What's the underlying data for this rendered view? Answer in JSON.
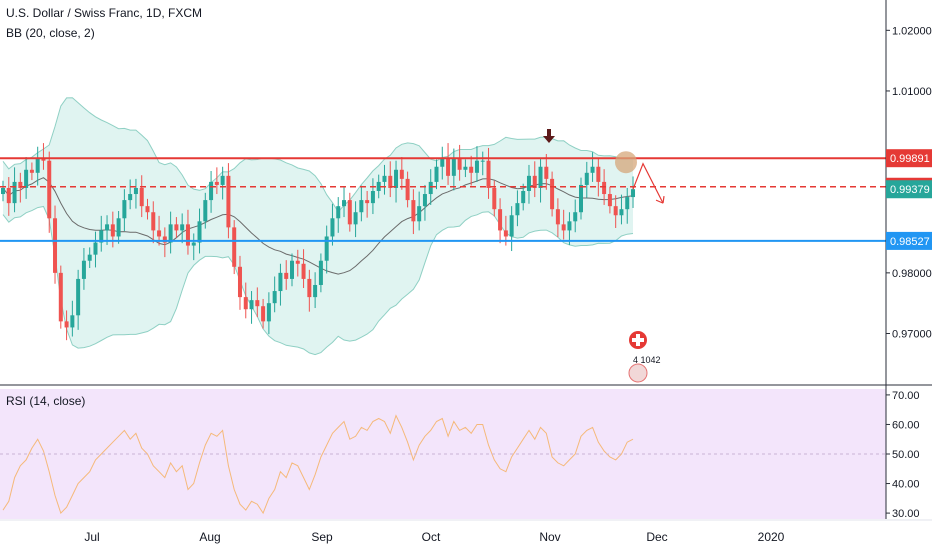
{
  "header": {
    "symbol": "U.S. Dollar / Swiss Franc, 1D, FXCM",
    "indicator": "BB (20, close, 2)",
    "rsi_label": "RSI (14, close)"
  },
  "colors": {
    "up": "#26a69a",
    "down": "#ef5350",
    "bb_fill": "#e0f4f1",
    "bb_line": "#8fd0c4",
    "basis": "#6b6b6b",
    "resistance": "#e53935",
    "support": "#2196f3",
    "current": "#26a69a",
    "rsi_bg": "#f3e5fb",
    "rsi_line": "#f5b97a",
    "annotation_arrow": "#5d1a1a",
    "circle": "#d6a77a"
  },
  "chart_data": [
    {
      "type": "candlestick",
      "title": "U.S. Dollar / Swiss Franc, 1D, FXCM",
      "x_tick_labels": [
        "Jul",
        "Aug",
        "Sep",
        "Oct",
        "Nov",
        "Dec",
        "2020"
      ],
      "y_tick_labels": [
        "1.02000",
        "1.01000",
        "0.98000",
        "0.97000"
      ],
      "ylim": [
        0.962,
        1.025
      ],
      "price_labels": [
        {
          "value": 0.99891,
          "label": "0.99891",
          "role": "resistance"
        },
        {
          "value": 0.9942,
          "label": "0.99420",
          "role": "resistance-dashed"
        },
        {
          "value": 0.99379,
          "label": "0.99379",
          "role": "current"
        },
        {
          "value": 0.98527,
          "label": "0.98527",
          "role": "support"
        }
      ],
      "overlay": "BB (20, close, 2)",
      "closes": [
        0.994,
        0.9915,
        0.995,
        0.994,
        0.997,
        0.9965,
        0.999,
        0.9985,
        0.989,
        0.98,
        0.972,
        0.971,
        0.973,
        0.979,
        0.982,
        0.983,
        0.985,
        0.987,
        0.988,
        0.986,
        0.989,
        0.992,
        0.993,
        0.994,
        0.991,
        0.99,
        0.987,
        0.986,
        0.985,
        0.988,
        0.987,
        0.988,
        0.9845,
        0.985,
        0.9885,
        0.992,
        0.995,
        0.9945,
        0.996,
        0.9875,
        0.981,
        0.976,
        0.974,
        0.9755,
        0.9745,
        0.972,
        0.975,
        0.977,
        0.98,
        0.979,
        0.982,
        0.9815,
        0.979,
        0.976,
        0.978,
        0.982,
        0.986,
        0.989,
        0.991,
        0.992,
        0.988,
        0.99,
        0.992,
        0.9915,
        0.9935,
        0.995,
        0.996,
        0.994,
        0.997,
        0.9955,
        0.992,
        0.9885,
        0.991,
        0.993,
        0.995,
        0.9975,
        0.999,
        0.996,
        0.999,
        0.997,
        0.9975,
        0.9965,
        0.9985,
        0.9985,
        0.994,
        0.9905,
        0.987,
        0.986,
        0.9895,
        0.9915,
        0.9935,
        0.996,
        0.994,
        0.9975,
        0.9955,
        0.9905,
        0.988,
        0.987,
        0.9885,
        0.99,
        0.9945,
        0.9965,
        0.9975,
        0.995,
        0.993,
        0.991,
        0.9895,
        0.9905,
        0.9925,
        0.9938
      ],
      "rsi": {
        "label": "RSI (14, close)",
        "y_tick_labels": [
          "70.00",
          "60.00",
          "50.00",
          "40.00",
          "30.00"
        ],
        "ylim": [
          28,
          72
        ],
        "values": [
          31,
          34,
          42,
          46,
          48,
          52,
          55,
          51,
          44,
          36,
          30,
          32,
          36,
          40,
          42,
          44,
          48,
          50,
          52,
          54,
          56,
          58,
          55,
          57,
          52,
          50,
          46,
          44,
          42,
          47,
          44,
          46,
          38,
          40,
          47,
          53,
          57,
          56,
          58,
          46,
          38,
          33,
          31,
          34,
          33,
          30,
          35,
          38,
          44,
          42,
          47,
          46,
          42,
          38,
          43,
          49,
          53,
          57,
          59,
          61,
          55,
          56,
          59,
          58,
          61,
          62,
          61,
          57,
          63,
          59,
          54,
          48,
          53,
          56,
          58,
          61,
          62,
          56,
          61,
          58,
          59,
          57,
          60,
          60,
          53,
          48,
          45,
          44,
          49,
          52,
          55,
          58,
          55,
          59,
          57,
          49,
          47,
          46,
          48,
          50,
          56,
          58,
          59,
          54,
          51,
          49,
          48,
          50,
          54,
          55
        ]
      },
      "annotations": [
        {
          "type": "down-arrow",
          "near": "Nov"
        },
        {
          "type": "circle",
          "at_value": 0.99891
        },
        {
          "type": "projected-path",
          "direction": "down"
        }
      ]
    }
  ],
  "flag_widget": {
    "text": "4 1042"
  }
}
